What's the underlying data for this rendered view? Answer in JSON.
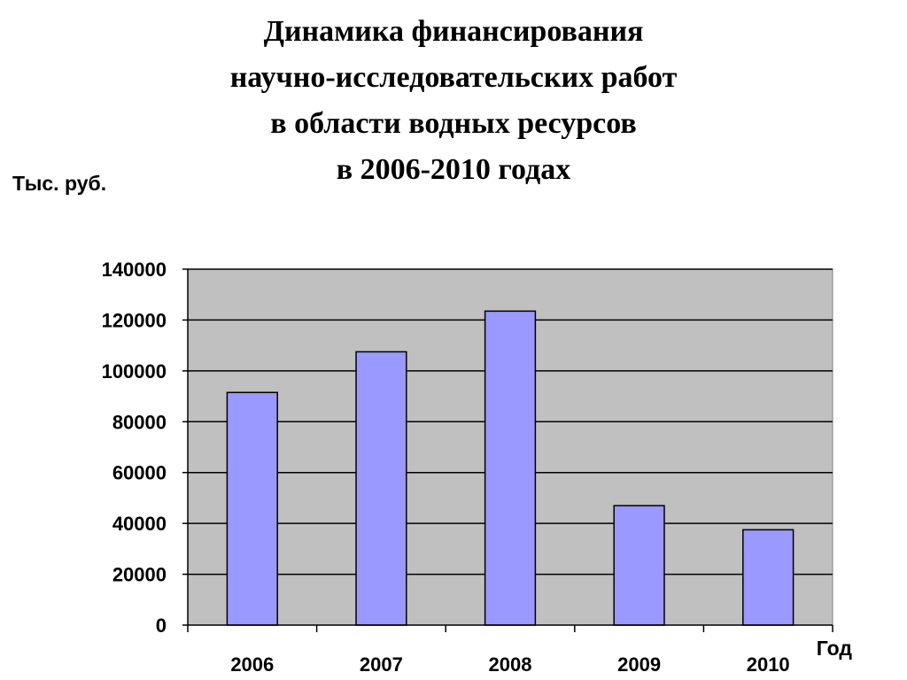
{
  "title_lines": [
    "Динамика финансирования",
    "научно-исследовательских работ",
    "в области водных ресурсов",
    "в 2006-2010 годах"
  ],
  "colors": {
    "plot_background": "#c0c0c0",
    "bar_fill": "#9999ff",
    "bar_stroke": "#000000",
    "gridline": "#000000"
  },
  "chart_data": {
    "type": "bar",
    "title": "Динамика финансирования научно-исследовательских работ в области водных ресурсов в 2006-2010 годах",
    "xlabel": "Год",
    "ylabel": "Тыс. руб.",
    "categories": [
      "2006",
      "2007",
      "2008",
      "2009",
      "2010"
    ],
    "values": [
      91500,
      107500,
      123500,
      47000,
      37500
    ],
    "ylim": [
      0,
      140000
    ],
    "yticks": [
      "0",
      "20000",
      "40000",
      "60000",
      "80000",
      "100000",
      "120000",
      "140000"
    ],
    "grid": true,
    "legend": "none"
  }
}
